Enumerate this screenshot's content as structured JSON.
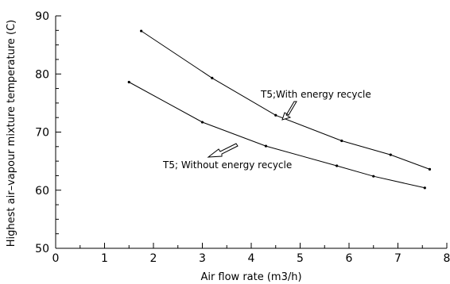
{
  "chart_data": {
    "type": "line",
    "xlabel": "Air flow rate (m3/h)",
    "ylabel": "Highest air–vapour mixture temperature (C)",
    "xlim": [
      0,
      8
    ],
    "ylim": [
      50,
      90
    ],
    "x_ticks": [
      "0",
      "1",
      "2",
      "3",
      "4",
      "5",
      "6",
      "7",
      "8"
    ],
    "y_ticks": [
      "50",
      "60",
      "70",
      "80",
      "90"
    ],
    "grid": false,
    "series": [
      {
        "name": "T5;With energy recycle",
        "x": [
          1.75,
          3.2,
          4.5,
          5.85,
          6.85,
          7.65
        ],
        "y": [
          87.4,
          79.3,
          72.9,
          68.5,
          66.1,
          63.6
        ]
      },
      {
        "name": "T5; Without energy recycle",
        "x": [
          1.5,
          3.0,
          4.3,
          5.75,
          6.5,
          7.55
        ],
        "y": [
          78.6,
          71.7,
          67.6,
          64.2,
          62.4,
          60.4
        ]
      }
    ]
  }
}
